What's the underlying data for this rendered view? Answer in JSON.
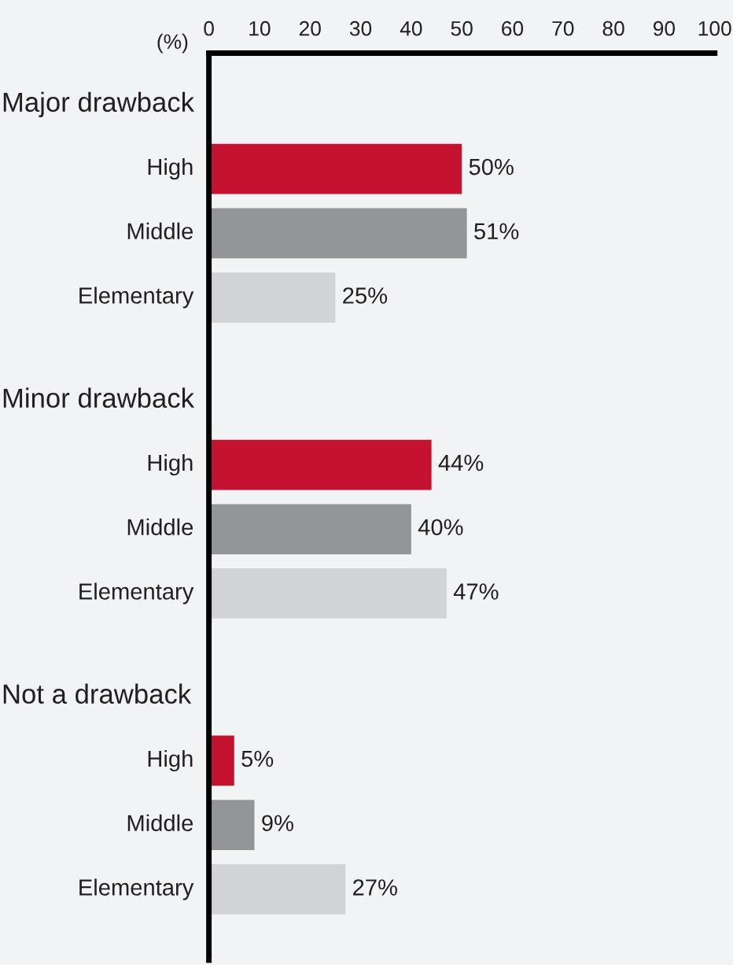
{
  "chart_data": {
    "type": "bar",
    "orientation": "horizontal",
    "xlabel": "(%)",
    "categories": [
      "Major drawback",
      "Minor drawback",
      "Not a drawback"
    ],
    "series": [
      {
        "name": "High",
        "color": "#c41230",
        "values": [
          50,
          44,
          5
        ],
        "value_labels": [
          "50%",
          "44%",
          "5%"
        ]
      },
      {
        "name": "Middle",
        "color": "#939598",
        "values": [
          51,
          40,
          9
        ],
        "value_labels": [
          "51%",
          "40%",
          "9%"
        ]
      },
      {
        "name": "Elementary",
        "color": "#d1d3d4",
        "values": [
          25,
          47,
          27
        ],
        "value_labels": [
          "25%",
          "47%",
          "27%"
        ]
      }
    ],
    "xlim": [
      0,
      100
    ],
    "xticks": [
      0,
      10,
      20,
      30,
      40,
      50,
      60,
      70,
      80,
      90,
      100
    ],
    "legend": false,
    "grid": false
  }
}
